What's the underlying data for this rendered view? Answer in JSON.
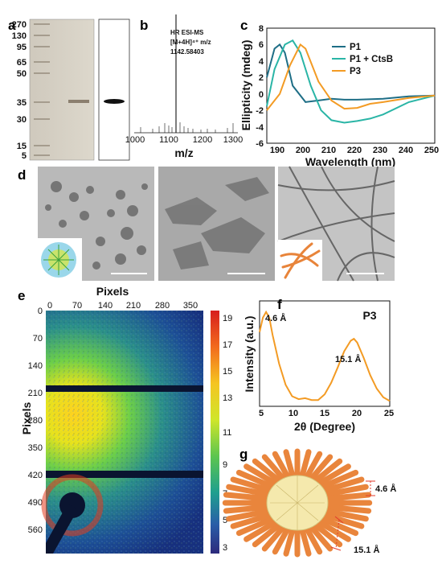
{
  "panel_labels": [
    "a",
    "b",
    "c",
    "d",
    "e",
    "f",
    "g"
  ],
  "panel_a": {
    "ladder_marks": [
      "270",
      "130",
      "95",
      "65",
      "50",
      "35",
      "30",
      "15",
      "5"
    ]
  },
  "panel_b": {
    "title_line1": "HR ESI-MS",
    "title_line2": "[M+4H]⁴⁺ m/z",
    "title_line3": "1142.58403",
    "xlabel": "m/z",
    "xticks": [
      "1000",
      "1100",
      "1200",
      "1300"
    ]
  },
  "panel_c": {
    "ylabel": "Ellipticity (mdeg)",
    "xlabel": "Wavelength (nm)",
    "xticks": [
      "190",
      "200",
      "210",
      "220",
      "230",
      "240",
      "250"
    ],
    "yticks": [
      "8",
      "6",
      "4",
      "2",
      "0",
      "-2",
      "-4",
      "-6"
    ],
    "legend": [
      {
        "name": "P1",
        "color": "#1e6e86"
      },
      {
        "name": "P1 + CtsB",
        "color": "#2ab5a6"
      },
      {
        "name": "P3",
        "color": "#f39b24"
      }
    ]
  },
  "panel_e": {
    "title": "Pixels",
    "ylabel": "Pixels",
    "xticks": [
      "0",
      "70",
      "140",
      "210",
      "280",
      "350"
    ],
    "yticks": [
      "0",
      "70",
      "140",
      "210",
      "280",
      "350",
      "420",
      "490",
      "560"
    ],
    "colorbar_ticks": [
      "19",
      "17",
      "15",
      "13",
      "11",
      "9",
      "7",
      "5",
      "3"
    ]
  },
  "panel_f": {
    "title": "P3",
    "ylabel": "Intensity (a.u.)",
    "xlabel": "2θ (Degree)",
    "xticks": [
      "5",
      "10",
      "15",
      "20",
      "25"
    ],
    "peak1": "4.6 Å",
    "peak2": "15.1 Å",
    "line_color": "#f39b24"
  },
  "panel_g": {
    "dim1": "4.6 Å",
    "dim2": "15.1 Å"
  },
  "chart_data": [
    {
      "type": "line",
      "xlabel": "Wavelength (nm)",
      "ylabel": "Ellipticity (mdeg)",
      "xlim": [
        185,
        250
      ],
      "ylim": [
        -6,
        8
      ],
      "series": [
        {
          "name": "P1",
          "x": [
            185,
            188,
            190,
            192,
            195,
            200,
            205,
            210,
            215,
            220,
            230,
            240,
            250
          ],
          "y": [
            2.0,
            5.5,
            6.0,
            5.0,
            1.0,
            -1.0,
            -0.8,
            -0.6,
            -0.7,
            -0.7,
            -0.6,
            -0.3,
            -0.2
          ]
        },
        {
          "name": "P1 + CtsB",
          "x": [
            185,
            188,
            192,
            195,
            198,
            202,
            206,
            210,
            215,
            220,
            225,
            230,
            240,
            250
          ],
          "y": [
            -1.5,
            3.0,
            6.0,
            6.5,
            5.0,
            1.0,
            -2.0,
            -3.2,
            -3.5,
            -3.3,
            -3.0,
            -2.5,
            -1.0,
            -0.2
          ]
        },
        {
          "name": "P3",
          "x": [
            185,
            190,
            194,
            198,
            200,
            205,
            210,
            215,
            220,
            225,
            230,
            240,
            250
          ],
          "y": [
            -2.0,
            0.0,
            3.5,
            6.0,
            5.5,
            1.5,
            -0.8,
            -1.8,
            -1.7,
            -1.2,
            -1.0,
            -0.5,
            -0.2
          ]
        }
      ]
    },
    {
      "type": "line",
      "title": "P3",
      "xlabel": "2θ (Degree)",
      "ylabel": "Intensity (a.u.)",
      "xlim": [
        5,
        25
      ],
      "series": [
        {
          "name": "P3",
          "x": [
            5,
            5.5,
            6,
            6.5,
            7,
            8,
            9,
            10,
            11,
            12,
            13,
            14,
            15,
            16,
            17,
            18,
            19,
            19.5,
            20,
            21,
            22,
            23,
            24,
            25
          ],
          "y": [
            0.75,
            0.9,
            0.96,
            0.9,
            0.72,
            0.42,
            0.2,
            0.08,
            0.05,
            0.06,
            0.04,
            0.04,
            0.1,
            0.22,
            0.38,
            0.55,
            0.66,
            0.68,
            0.64,
            0.48,
            0.3,
            0.16,
            0.07,
            0.03
          ]
        }
      ]
    }
  ]
}
